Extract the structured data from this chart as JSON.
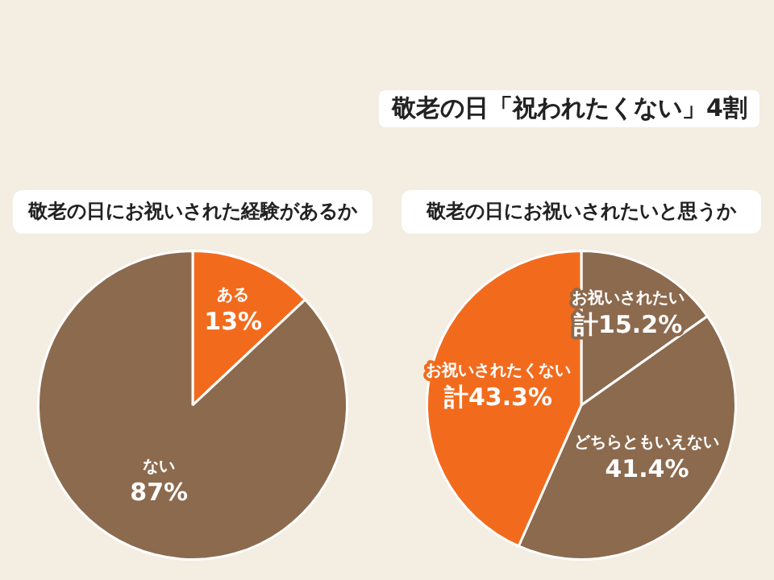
{
  "chart_data": [
    {
      "type": "pie",
      "title": "敬老の日にお祝いされた経験があるか",
      "annotations": [
        "敬老の日「祝われたくない」4割"
      ],
      "categories": [
        "ある",
        "ない"
      ],
      "values": [
        13,
        87
      ],
      "colors": [
        "#f26b1d",
        "#8c6a4e"
      ],
      "value_labels": [
        "13%",
        "87%"
      ],
      "legend": false
    },
    {
      "type": "pie",
      "title": "敬老の日にお祝いされたいと思うか",
      "categories": [
        "お祝いされたい",
        "どちらともいえない",
        "お祝いされたくない"
      ],
      "values": [
        15.2,
        41.4,
        43.3
      ],
      "colors": [
        "#8c6a4e",
        "#8c6a4e",
        "#f26b1d"
      ],
      "value_labels": [
        "計15.2%",
        "41.4%",
        "計43.3%"
      ],
      "legend": false
    }
  ]
}
